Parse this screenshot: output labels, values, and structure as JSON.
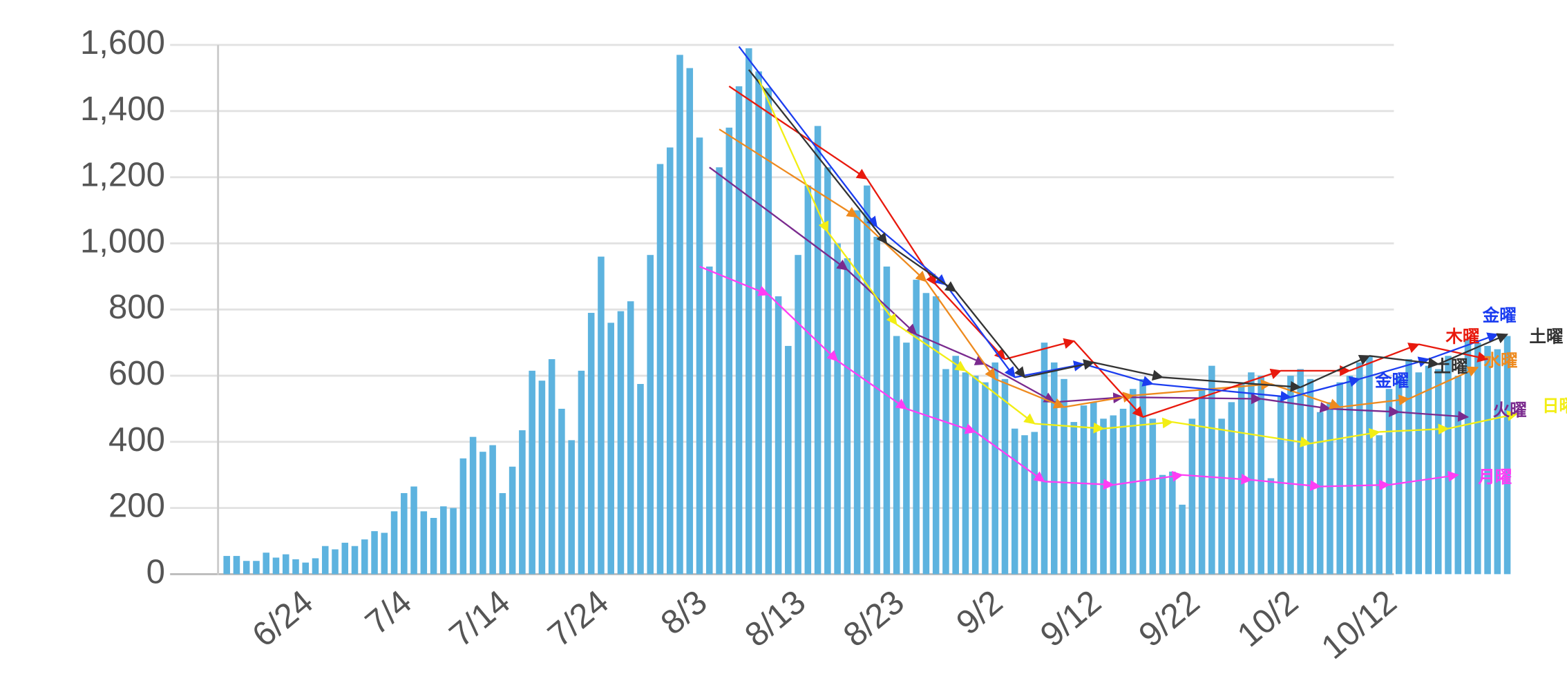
{
  "chart_data": {
    "type": "bar",
    "color": "#5db3df",
    "ylim": [
      0,
      1600
    ],
    "yticks": [
      0,
      200,
      400,
      600,
      800,
      {
        "value": 1000,
        "label": "1,000"
      },
      {
        "value": 1200,
        "label": "1,200"
      },
      {
        "value": 1400,
        "label": "1,400"
      },
      {
        "value": 1600,
        "label": "1,600"
      }
    ],
    "grid": true,
    "connect_gaps": true,
    "categories": [
      null,
      null,
      null,
      null,
      null,
      null,
      null,
      null,
      "6/24",
      null,
      null,
      null,
      null,
      null,
      null,
      null,
      null,
      null,
      "7/4",
      null,
      null,
      null,
      null,
      null,
      null,
      null,
      null,
      null,
      "7/14",
      null,
      null,
      null,
      null,
      null,
      null,
      null,
      null,
      null,
      "7/24",
      null,
      null,
      null,
      null,
      null,
      null,
      null,
      null,
      null,
      "8/3",
      null,
      null,
      null,
      null,
      null,
      null,
      null,
      null,
      null,
      "8/13",
      null,
      null,
      null,
      null,
      null,
      null,
      null,
      null,
      null,
      "8/23",
      null,
      null,
      null,
      null,
      null,
      null,
      null,
      null,
      null,
      "9/2",
      null,
      null,
      null,
      null,
      null,
      null,
      null,
      null,
      null,
      "9/12",
      null,
      null,
      null,
      null,
      null,
      null,
      null,
      null,
      null,
      "9/22",
      null,
      null,
      null,
      null,
      null,
      null,
      null,
      null,
      null,
      "10/2",
      null,
      null,
      null,
      null,
      null,
      null,
      null,
      null,
      null,
      "10/12",
      null,
      null,
      null,
      null,
      null,
      null,
      null,
      null,
      null,
      null,
      null,
      null,
      null
    ],
    "values": [
      55,
      55,
      40,
      40,
      65,
      50,
      60,
      45,
      35,
      48,
      85,
      75,
      95,
      85,
      105,
      130,
      125,
      190,
      245,
      265,
      190,
      170,
      205,
      200,
      350,
      415,
      370,
      390,
      245,
      325,
      435,
      615,
      585,
      650,
      500,
      405,
      615,
      790,
      960,
      760,
      795,
      825,
      575,
      965,
      1240,
      1290,
      1570,
      1530,
      1320,
      930,
      1230,
      1350,
      1475,
      1590,
      1520,
      1470,
      840,
      690,
      965,
      1175,
      1355,
      1230,
      1000,
      955,
      1100,
      1175,
      1020,
      930,
      720,
      700,
      890,
      850,
      840,
      620,
      660,
      610,
      600,
      580,
      640,
      590,
      440,
      420,
      430,
      700,
      640,
      590,
      460,
      510,
      520,
      470,
      480,
      500,
      560,
      590,
      470,
      300,
      310,
      210,
      470,
      560,
      630,
      470,
      520,
      580,
      610,
      600,
      290,
      540,
      600,
      620,
      590,
      490,
      520,
      580,
      600,
      640,
      660,
      420,
      560,
      600,
      650,
      610,
      630,
      620,
      660,
      600,
      710,
      700,
      690,
      680,
      720,
      null
    ],
    "series": [
      {
        "name": "月曜",
        "color": "#ff3df5",
        "values": [
          null,
          null,
          null,
          null,
          null,
          null,
          null,
          null,
          null,
          null,
          null,
          null,
          null,
          null,
          null,
          null,
          null,
          null,
          null,
          null,
          null,
          null,
          null,
          null,
          null,
          null,
          null,
          null,
          null,
          null,
          null,
          null,
          null,
          null,
          null,
          null,
          null,
          null,
          null,
          null,
          null,
          null,
          null,
          null,
          null,
          null,
          null,
          null,
          930,
          null,
          null,
          null,
          null,
          null,
          null,
          845,
          null,
          null,
          null,
          null,
          null,
          null,
          645,
          null,
          null,
          null,
          null,
          null,
          null,
          500,
          null,
          null,
          null,
          null,
          null,
          null,
          430,
          null,
          null,
          null,
          null,
          null,
          null,
          280,
          null,
          null,
          null,
          null,
          null,
          null,
          270,
          null,
          null,
          null,
          null,
          null,
          null,
          300,
          null,
          null,
          null,
          null,
          null,
          null,
          285,
          null,
          null,
          null,
          null,
          null,
          null,
          265,
          null,
          null,
          null,
          null,
          null,
          null,
          270,
          null,
          null,
          null,
          null,
          null,
          null,
          300,
          null,
          null,
          null,
          null,
          null,
          null
        ]
      },
      {
        "name": "火曜",
        "color": "#7a2a8e",
        "values": [
          null,
          null,
          null,
          null,
          null,
          null,
          null,
          null,
          null,
          null,
          null,
          null,
          null,
          null,
          null,
          null,
          null,
          null,
          null,
          null,
          null,
          null,
          null,
          null,
          null,
          null,
          null,
          null,
          null,
          null,
          null,
          null,
          null,
          null,
          null,
          null,
          null,
          null,
          null,
          null,
          null,
          null,
          null,
          null,
          null,
          null,
          null,
          null,
          null,
          1230,
          null,
          null,
          null,
          null,
          null,
          null,
          null,
          null,
          null,
          null,
          null,
          null,
          null,
          920,
          null,
          null,
          null,
          null,
          null,
          null,
          725,
          null,
          null,
          null,
          null,
          null,
          null,
          635,
          null,
          null,
          null,
          null,
          null,
          null,
          520,
          null,
          null,
          null,
          null,
          null,
          null,
          535,
          null,
          null,
          null,
          null,
          null,
          null,
          null,
          null,
          null,
          null,
          null,
          null,
          null,
          530,
          null,
          null,
          null,
          null,
          null,
          null,
          500,
          null,
          null,
          null,
          null,
          null,
          null,
          490,
          null,
          null,
          null,
          null,
          null,
          null,
          475,
          null,
          null,
          null,
          null,
          null
        ]
      },
      {
        "name": "水曜",
        "color": "#ee8a1e",
        "values": [
          null,
          null,
          null,
          null,
          null,
          null,
          null,
          null,
          null,
          null,
          null,
          null,
          null,
          null,
          null,
          null,
          null,
          null,
          null,
          null,
          null,
          null,
          null,
          null,
          null,
          null,
          null,
          null,
          null,
          null,
          null,
          null,
          null,
          null,
          null,
          null,
          null,
          null,
          null,
          null,
          null,
          null,
          null,
          null,
          null,
          null,
          null,
          null,
          null,
          null,
          1345,
          null,
          null,
          null,
          null,
          null,
          null,
          null,
          null,
          null,
          null,
          null,
          null,
          null,
          1080,
          null,
          null,
          null,
          null,
          null,
          null,
          885,
          null,
          null,
          null,
          null,
          null,
          null,
          590,
          null,
          null,
          null,
          null,
          null,
          null,
          505,
          null,
          null,
          null,
          null,
          null,
          null,
          540,
          null,
          null,
          null,
          null,
          null,
          null,
          null,
          null,
          null,
          null,
          null,
          null,
          null,
          575,
          null,
          null,
          null,
          null,
          null,
          null,
          505,
          null,
          null,
          null,
          null,
          null,
          null,
          530,
          null,
          null,
          null,
          null,
          null,
          null,
          625,
          null,
          null,
          null,
          null
        ]
      },
      {
        "name": "木曜",
        "color": "#e8190d",
        "values": [
          null,
          null,
          null,
          null,
          null,
          null,
          null,
          null,
          null,
          null,
          null,
          null,
          null,
          null,
          null,
          null,
          null,
          null,
          null,
          null,
          null,
          null,
          null,
          null,
          null,
          null,
          null,
          null,
          null,
          null,
          null,
          null,
          null,
          null,
          null,
          null,
          null,
          null,
          null,
          null,
          null,
          null,
          null,
          null,
          null,
          null,
          null,
          null,
          null,
          null,
          null,
          1475,
          null,
          null,
          null,
          null,
          null,
          null,
          null,
          null,
          null,
          null,
          null,
          null,
          null,
          1195,
          null,
          null,
          null,
          null,
          null,
          null,
          875,
          null,
          null,
          null,
          null,
          null,
          null,
          650,
          null,
          null,
          null,
          null,
          null,
          null,
          705,
          null,
          null,
          null,
          null,
          null,
          null,
          475,
          null,
          null,
          null,
          null,
          null,
          null,
          null,
          null,
          null,
          null,
          null,
          null,
          null,
          615,
          null,
          null,
          null,
          null,
          null,
          null,
          615,
          null,
          null,
          null,
          null,
          null,
          null,
          695,
          null,
          null,
          null,
          null,
          null,
          null,
          650,
          null,
          null,
          null
        ]
      },
      {
        "name": "金曜",
        "color": "#1b3df0",
        "values": [
          null,
          null,
          null,
          null,
          null,
          null,
          null,
          null,
          null,
          null,
          null,
          null,
          null,
          null,
          null,
          null,
          null,
          null,
          null,
          null,
          null,
          null,
          null,
          null,
          null,
          null,
          null,
          null,
          null,
          null,
          null,
          null,
          null,
          null,
          null,
          null,
          null,
          null,
          null,
          null,
          null,
          null,
          null,
          null,
          null,
          null,
          null,
          null,
          null,
          null,
          null,
          null,
          1595,
          null,
          null,
          null,
          null,
          null,
          null,
          null,
          null,
          null,
          null,
          null,
          null,
          null,
          1050,
          null,
          null,
          null,
          null,
          null,
          null,
          875,
          null,
          null,
          null,
          null,
          null,
          null,
          595,
          null,
          null,
          null,
          null,
          null,
          null,
          635,
          null,
          null,
          null,
          null,
          null,
          null,
          575,
          null,
          null,
          null,
          null,
          null,
          null,
          null,
          null,
          null,
          null,
          null,
          null,
          null,
          535,
          null,
          null,
          null,
          null,
          null,
          null,
          590,
          null,
          null,
          null,
          null,
          null,
          null,
          650,
          null,
          null,
          null,
          null,
          null,
          null,
          725,
          null,
          null
        ]
      },
      {
        "name": "土曜",
        "color": "#333333",
        "values": [
          null,
          null,
          null,
          null,
          null,
          null,
          null,
          null,
          null,
          null,
          null,
          null,
          null,
          null,
          null,
          null,
          null,
          null,
          null,
          null,
          null,
          null,
          null,
          null,
          null,
          null,
          null,
          null,
          null,
          null,
          null,
          null,
          null,
          null,
          null,
          null,
          null,
          null,
          null,
          null,
          null,
          null,
          null,
          null,
          null,
          null,
          null,
          null,
          null,
          null,
          null,
          null,
          null,
          1525,
          null,
          null,
          null,
          null,
          null,
          null,
          null,
          null,
          null,
          null,
          null,
          null,
          null,
          1000,
          null,
          null,
          null,
          null,
          null,
          null,
          855,
          null,
          null,
          null,
          null,
          null,
          null,
          595,
          null,
          null,
          null,
          null,
          null,
          null,
          640,
          null,
          null,
          null,
          null,
          null,
          null,
          595,
          null,
          null,
          null,
          null,
          null,
          null,
          null,
          null,
          null,
          null,
          null,
          null,
          null,
          565,
          null,
          null,
          null,
          null,
          null,
          null,
          660,
          null,
          null,
          null,
          null,
          null,
          null,
          635,
          null,
          null,
          null,
          null,
          null,
          null,
          725,
          null
        ]
      },
      {
        "name": "日曜",
        "color": "#f2ee14",
        "values": [
          null,
          null,
          null,
          null,
          null,
          null,
          null,
          null,
          null,
          null,
          null,
          null,
          null,
          null,
          null,
          null,
          null,
          null,
          null,
          null,
          null,
          null,
          null,
          null,
          null,
          null,
          null,
          null,
          null,
          null,
          null,
          null,
          null,
          null,
          null,
          null,
          null,
          null,
          null,
          null,
          null,
          null,
          null,
          null,
          null,
          null,
          null,
          null,
          null,
          null,
          null,
          null,
          null,
          null,
          1495,
          null,
          null,
          null,
          null,
          null,
          null,
          1035,
          null,
          null,
          null,
          null,
          null,
          null,
          755,
          null,
          null,
          null,
          null,
          null,
          null,
          615,
          null,
          null,
          null,
          null,
          null,
          null,
          455,
          null,
          null,
          null,
          null,
          null,
          null,
          440,
          null,
          null,
          null,
          null,
          null,
          null,
          460,
          null,
          null,
          null,
          null,
          null,
          null,
          null,
          null,
          null,
          null,
          null,
          null,
          null,
          395,
          null,
          null,
          null,
          null,
          null,
          null,
          430,
          null,
          null,
          null,
          null,
          null,
          null,
          440,
          null,
          null,
          null,
          null,
          null,
          null,
          485
        ]
      }
    ]
  }
}
